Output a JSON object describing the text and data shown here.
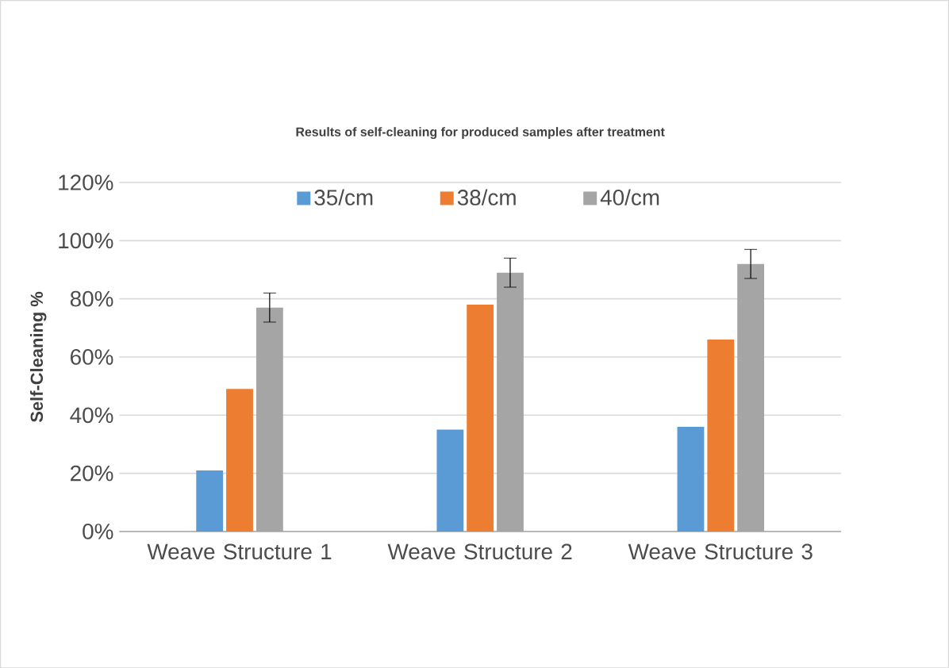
{
  "chart_data": {
    "type": "bar",
    "title": "Results of self-cleaning for produced samples after treatment",
    "ylabel": "Self-Cleaning %",
    "categories": [
      "Weave Structure 1",
      "Weave Structure 2",
      "Weave Structure 3"
    ],
    "series": [
      {
        "name": "35/cm",
        "color": "#5b9bd5",
        "values": [
          21,
          35,
          36
        ]
      },
      {
        "name": "38/cm",
        "color": "#ed7d31",
        "values": [
          49,
          78,
          66
        ]
      },
      {
        "name": "40/cm",
        "color": "#a5a5a5",
        "values": [
          77,
          89,
          92
        ],
        "errors": [
          5,
          5,
          5
        ]
      }
    ],
    "ylim": [
      0,
      120
    ],
    "yticks": [
      {
        "value": 0,
        "label": "0%"
      },
      {
        "value": 20,
        "label": "20%"
      },
      {
        "value": 40,
        "label": "40%"
      },
      {
        "value": 60,
        "label": "60%"
      },
      {
        "value": 80,
        "label": "80%"
      },
      {
        "value": 100,
        "label": "100%"
      },
      {
        "value": 120,
        "label": "120%"
      }
    ],
    "grid": "y",
    "legend": "top"
  }
}
